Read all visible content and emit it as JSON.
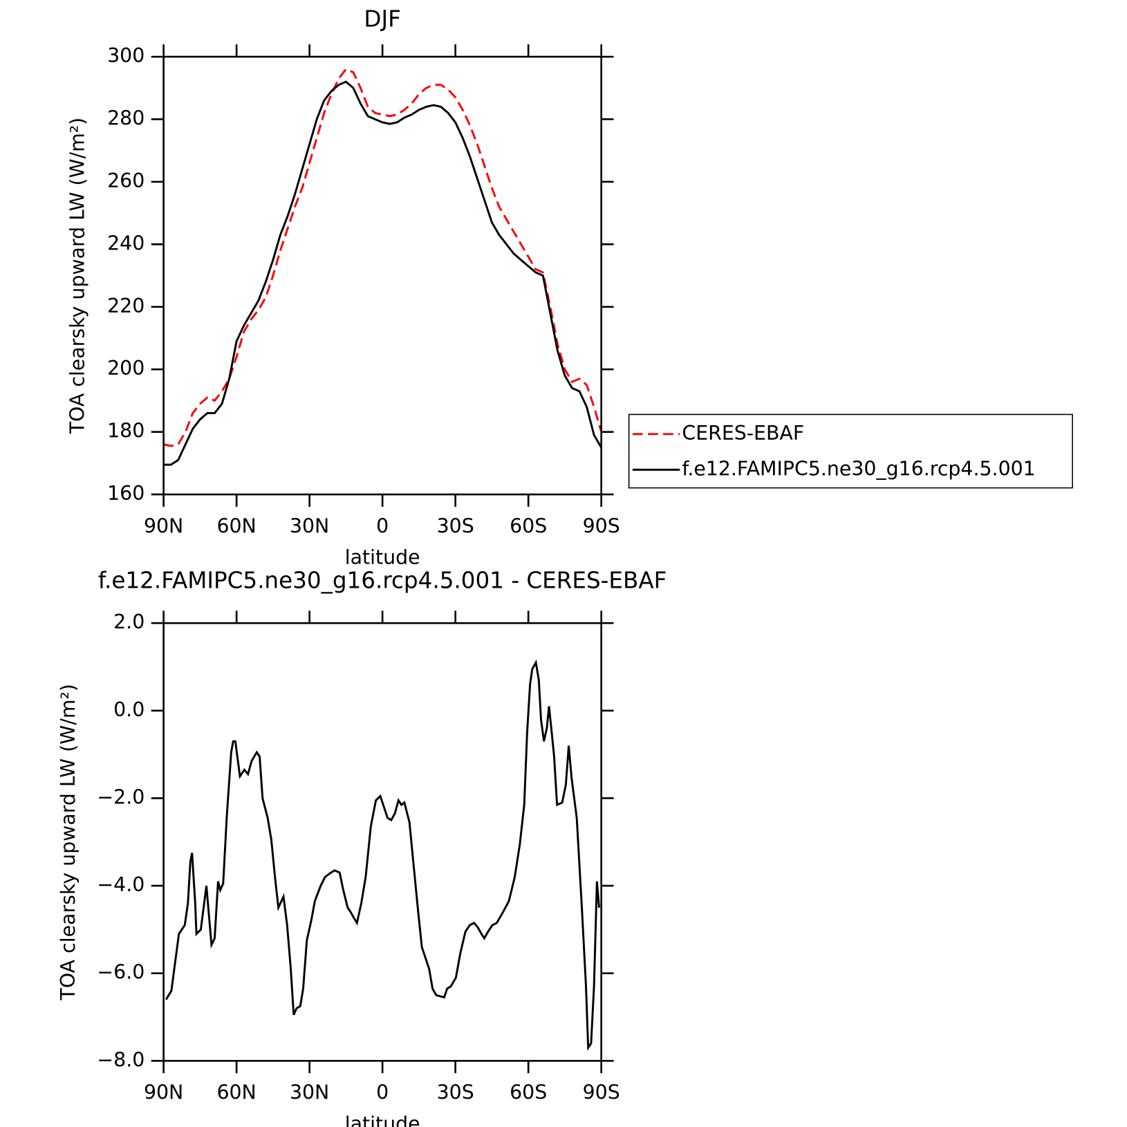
{
  "chart_data": [
    {
      "type": "line",
      "title": "DJF",
      "x_label": "latitude",
      "y_label": "TOA clearsky upward LW (W/m²)",
      "x": [
        90,
        87,
        84,
        81,
        78,
        75,
        72,
        69,
        66,
        63,
        60,
        57,
        54,
        51,
        48,
        45,
        42,
        39,
        36,
        33,
        30,
        27,
        24,
        21,
        18,
        15,
        12,
        9,
        6,
        3,
        0,
        -3,
        -6,
        -9,
        -12,
        -15,
        -18,
        -21,
        -24,
        -27,
        -30,
        -33,
        -36,
        -39,
        -42,
        -45,
        -48,
        -51,
        -54,
        -57,
        -60,
        -63,
        -66,
        -69,
        -72,
        -75,
        -78,
        -81,
        -84,
        -87,
        -90
      ],
      "xlim": [
        90,
        -90
      ],
      "xticks": [
        {
          "value": 90,
          "label": "90N"
        },
        {
          "value": 60,
          "label": "60N"
        },
        {
          "value": 30,
          "label": "30N"
        },
        0,
        {
          "value": -30,
          "label": "30S"
        },
        {
          "value": -60,
          "label": "60S"
        },
        {
          "value": -90,
          "label": "90S"
        }
      ],
      "ylim": [
        160,
        300
      ],
      "yticks": [
        160,
        180,
        200,
        220,
        240,
        260,
        280,
        300
      ],
      "legend": "right",
      "series": [
        {
          "name": "CERES-EBAF",
          "color": "#ff0000",
          "linestyle": "dashed",
          "values": [
            176,
            175.5,
            176,
            180,
            186,
            189,
            191,
            190,
            193,
            197,
            204,
            212,
            216,
            219,
            223,
            230,
            238,
            245,
            252,
            258,
            266,
            274,
            282,
            288,
            293,
            296,
            295,
            290,
            284,
            282,
            281.5,
            281,
            281.5,
            283,
            285,
            288,
            290,
            291,
            291,
            289.5,
            287,
            283,
            278,
            272,
            265,
            258,
            252,
            248,
            244,
            240,
            236,
            232,
            231,
            220,
            208,
            200,
            196,
            197,
            195,
            188,
            180
          ]
        },
        {
          "name": "f.e12.FAMIPC5.ne30_g16.rcp4.5.001",
          "color": "#000000",
          "linestyle": "solid",
          "values": [
            169.5,
            169.5,
            171,
            176,
            181,
            184,
            186,
            186,
            189,
            197,
            209,
            214,
            218,
            222,
            228,
            235,
            243,
            249,
            256,
            264,
            272,
            280,
            286,
            289,
            291,
            292,
            290,
            285,
            281,
            280,
            279,
            278.5,
            279,
            280.5,
            281.5,
            283,
            284,
            284.5,
            284,
            282,
            279,
            274,
            268,
            261,
            254,
            247,
            243,
            240,
            237,
            235,
            233,
            231,
            230,
            218,
            206,
            198,
            194,
            193,
            188,
            179,
            175
          ]
        }
      ]
    },
    {
      "type": "line",
      "title": "f.e12.FAMIPC5.ne30_g16.rcp4.5.001 - CERES-EBAF",
      "x_label": "latitude",
      "y_label": "TOA clearsky upward LW (W/m²)",
      "x": [
        89,
        86.8,
        83.7,
        81.3,
        80,
        79,
        78.3,
        77,
        76.5,
        74.7,
        72.4,
        70.3,
        69,
        67.6,
        66.7,
        65.5,
        64,
        62.2,
        61.4,
        60.5,
        58.6,
        56.8,
        55.3,
        53.8,
        51.7,
        50.5,
        49.3,
        47.2,
        45.7,
        44.2,
        42.8,
        40.7,
        39.2,
        37.7,
        36.5,
        35.3,
        33.8,
        32.6,
        31.1,
        29.3,
        27.8,
        25.4,
        23.6,
        21.2,
        19.7,
        17.6,
        16.1,
        14.3,
        13.1,
        11.6,
        10.5,
        8.7,
        6.9,
        4.8,
        2.7,
        0.9,
        -0.3,
        -2.1,
        -3.6,
        -5.1,
        -6.6,
        -7.8,
        -9,
        -11.1,
        -13.2,
        -14.7,
        -16.2,
        -17.7,
        -19.2,
        -20.6,
        -22.1,
        -25.4,
        -26.6,
        -28.1,
        -30.2,
        -32,
        -34.1,
        -35.9,
        -37.7,
        -39.2,
        -40.7,
        -41.9,
        -43.4,
        -45.2,
        -47,
        -49.6,
        -52,
        -54.4,
        -56.5,
        -58.3,
        -59.5,
        -60.7,
        -61.6,
        -63.1,
        -64.3,
        -65.2,
        -66.4,
        -67.6,
        -68.5,
        -69.7,
        -70.6,
        -71.8,
        -73.9,
        -75.4,
        -76.6,
        -77.8,
        -79.9,
        -82,
        -83.7,
        -84.6,
        -85.8,
        -87,
        -88.2,
        -89.1
      ],
      "xlim": [
        90,
        -90
      ],
      "xticks": [
        {
          "value": 90,
          "label": "90N"
        },
        {
          "value": 60,
          "label": "60N"
        },
        {
          "value": 30,
          "label": "30N"
        },
        0,
        {
          "value": -30,
          "label": "30S"
        },
        {
          "value": -60,
          "label": "60S"
        },
        {
          "value": -90,
          "label": "90S"
        }
      ],
      "ylim": [
        -8,
        2
      ],
      "yticks": [
        {
          "value": -8,
          "label": "−8.0"
        },
        {
          "value": -6,
          "label": "−6.0"
        },
        {
          "value": -4,
          "label": "−4.0"
        },
        {
          "value": -2,
          "label": "−2.0"
        },
        {
          "value": 0,
          "label": "0.0"
        },
        {
          "value": 2,
          "label": "2.0"
        }
      ],
      "color": "#000000",
      "values": [
        -6.6,
        -6.4,
        -5.1,
        -4.9,
        -4.4,
        -3.45,
        -3.25,
        -4.4,
        -5.1,
        -5.0,
        -4.0,
        -5.35,
        -5.2,
        -3.9,
        -4.1,
        -3.95,
        -2.4,
        -0.95,
        -0.7,
        -0.7,
        -1.5,
        -1.35,
        -1.45,
        -1.15,
        -0.95,
        -1.05,
        -2.0,
        -2.45,
        -2.95,
        -3.8,
        -4.5,
        -4.25,
        -4.9,
        -5.9,
        -6.95,
        -6.8,
        -6.75,
        -6.35,
        -5.25,
        -4.8,
        -4.35,
        -4.0,
        -3.8,
        -3.7,
        -3.65,
        -3.7,
        -4.1,
        -4.5,
        -4.6,
        -4.75,
        -4.85,
        -4.4,
        -3.8,
        -2.65,
        -2.05,
        -1.95,
        -2.15,
        -2.45,
        -2.5,
        -2.35,
        -2.05,
        -2.15,
        -2.1,
        -2.55,
        -3.75,
        -4.6,
        -5.4,
        -5.65,
        -5.9,
        -6.35,
        -6.5,
        -6.55,
        -6.35,
        -6.3,
        -6.1,
        -5.55,
        -5.05,
        -4.9,
        -4.85,
        -4.95,
        -5.1,
        -5.2,
        -5.05,
        -4.9,
        -4.85,
        -4.6,
        -4.35,
        -3.8,
        -3.05,
        -2.15,
        -0.5,
        0.6,
        0.95,
        1.1,
        0.7,
        -0.2,
        -0.7,
        -0.4,
        0.1,
        -0.55,
        -1.05,
        -2.15,
        -2.1,
        -1.7,
        -0.8,
        -1.55,
        -2.45,
        -4.5,
        -6.3,
        -7.7,
        -7.6,
        -6.3,
        -3.9,
        -4.5
      ]
    }
  ]
}
